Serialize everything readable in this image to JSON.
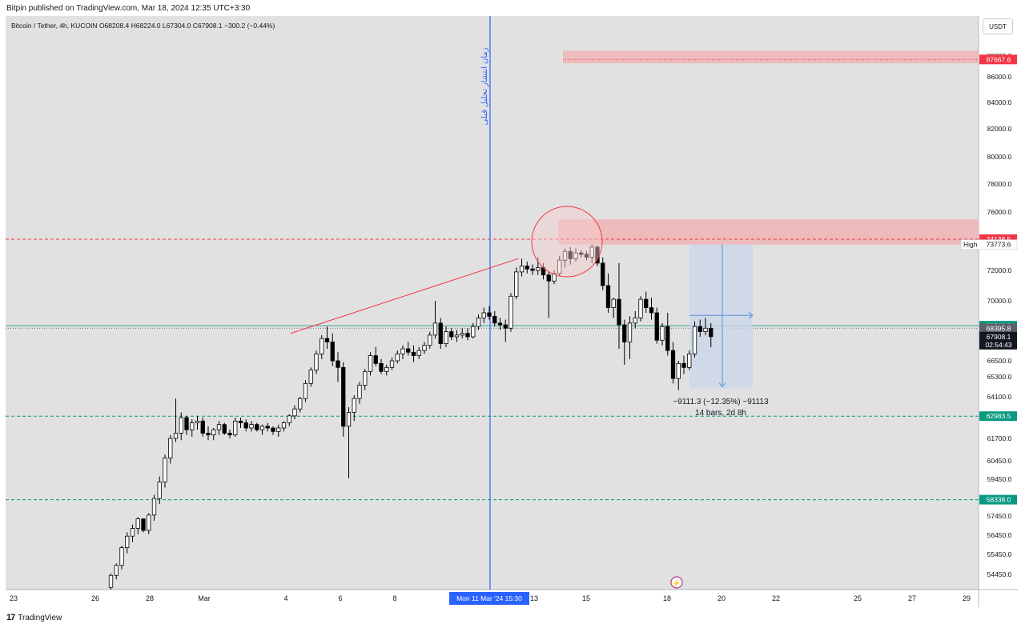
{
  "header": {
    "published_by": "Bitpin published on TradingView.com, Mar 18, 2024 12:35 UTC+3:30"
  },
  "symbol": {
    "name": "Bitcoin / Tether, 4h, KUCOIN",
    "open": "O68208.4",
    "high": "H68224.0",
    "low": "L67304.0",
    "close": "C67908.1",
    "change": "−300.2 (−0.44%)"
  },
  "currency": "USDT",
  "footer": {
    "brand": "TradingView"
  },
  "colors": {
    "background": "#e1e1e1",
    "candle_up": "#ffffff",
    "candle_down": "#000000",
    "resistance_zone": "#f0b2b2",
    "support_line": "#089981",
    "red_label": "#f23645",
    "green_label": "#089981",
    "vertical_line": "#2962ff",
    "measure_box": "#c9d6ea"
  },
  "annotations": {
    "vertical_line_text": "زمان انتشار تحلیل قبلی",
    "measure_line1": "−9111.3 (−12.35%) −91113",
    "measure_line2": "14 bars, 2d 8h",
    "time_label": "Mon 11 Mar '24   15:30",
    "high_label": "High",
    "high_value": "73773.6"
  },
  "chart_data": {
    "type": "candlestick",
    "symbol": "Bitcoin / Tether",
    "exchange": "KUCOIN",
    "interval": "4h",
    "y_axis": {
      "ticks": [
        88000,
        86000,
        84000,
        82000,
        80000,
        78000,
        76000,
        72000,
        70000,
        66500,
        65300,
        64100,
        61700,
        60450,
        59450,
        57450,
        56450,
        55450,
        54450
      ],
      "tick_labels": [
        "88000.0",
        "86000.0",
        "84000.0",
        "82000.0",
        "80000.0",
        "78000.0",
        "76000.0",
        "72000.0",
        "70000.0",
        "66500.0",
        "65300.0",
        "64100.0",
        "61700.0",
        "60450.0",
        "59450.0",
        "57450.0",
        "56450.0",
        "55450.0",
        "54450.0"
      ]
    },
    "x_axis": {
      "tick_labels": [
        "23",
        "26",
        "28",
        "Mar",
        "4",
        "6",
        "8",
        "13",
        "15",
        "18",
        "20",
        "22",
        "25",
        "27",
        "29"
      ]
    },
    "price_labels": [
      {
        "value": 87667.6,
        "text": "87667.6",
        "kind": "red"
      },
      {
        "value": 74138.5,
        "text": "74138.5",
        "kind": "red"
      },
      {
        "value": 68548.1,
        "text": "68548.1",
        "kind": "green"
      },
      {
        "value": 68395.8,
        "text": "68395.8",
        "kind": "gray"
      },
      {
        "value": 67908.1,
        "text": "67908.1",
        "countdown": "02:54:43",
        "kind": "black"
      },
      {
        "value": 62983.5,
        "text": "62983.5",
        "kind": "green"
      },
      {
        "value": 58338.0,
        "text": "58338.0",
        "kind": "green"
      }
    ],
    "horizontal_lines": [
      {
        "value": 74138.5,
        "style": "dashed",
        "color": "red"
      },
      {
        "value": 68548.1,
        "style": "solid",
        "color": "teal"
      },
      {
        "value": 68395.8,
        "style": "dotted",
        "color": "gray"
      },
      {
        "value": 62983.5,
        "style": "dashed",
        "color": "green"
      },
      {
        "value": 58338.0,
        "style": "dashed",
        "color": "green"
      }
    ],
    "zones": [
      {
        "from": 87300,
        "to": 88500,
        "color": "red"
      },
      {
        "from": 73773.6,
        "to": 75500,
        "color": "red"
      }
    ],
    "candles": [
      [
        53800,
        54500,
        53700,
        54400
      ],
      [
        54400,
        55000,
        54200,
        54900
      ],
      [
        54900,
        55900,
        54700,
        55800
      ],
      [
        55800,
        56600,
        55500,
        56400
      ],
      [
        56400,
        57000,
        56100,
        56800
      ],
      [
        56800,
        57400,
        56500,
        57300
      ],
      [
        57300,
        57200,
        56600,
        56700
      ],
      [
        56700,
        57600,
        56500,
        57500
      ],
      [
        57500,
        58600,
        57200,
        58400
      ],
      [
        58400,
        59600,
        58100,
        59300
      ],
      [
        59300,
        60800,
        59000,
        60600
      ],
      [
        60600,
        61900,
        60300,
        61700
      ],
      [
        61700,
        64000,
        61500,
        62000
      ],
      [
        62000,
        63200,
        61600,
        62900
      ],
      [
        62900,
        63000,
        61900,
        62200
      ],
      [
        62200,
        62800,
        61800,
        62600
      ],
      [
        62600,
        63000,
        62200,
        62700
      ],
      [
        62700,
        62900,
        61800,
        62000
      ],
      [
        62000,
        62400,
        61600,
        61900
      ],
      [
        61900,
        62300,
        61600,
        62200
      ],
      [
        62200,
        62700,
        61900,
        62500
      ],
      [
        62500,
        62600,
        61900,
        62000
      ],
      [
        62000,
        62200,
        61700,
        61900
      ],
      [
        61900,
        62900,
        61800,
        62700
      ],
      [
        62700,
        62900,
        62300,
        62600
      ],
      [
        62600,
        62800,
        62100,
        62300
      ],
      [
        62300,
        62700,
        62100,
        62500
      ],
      [
        62500,
        62600,
        62100,
        62200
      ],
      [
        62200,
        62500,
        61900,
        62400
      ],
      [
        62400,
        62600,
        62100,
        62300
      ],
      [
        62300,
        62400,
        61900,
        62100
      ],
      [
        62100,
        62500,
        61800,
        62300
      ],
      [
        62300,
        62700,
        62100,
        62600
      ],
      [
        62600,
        63100,
        62400,
        63000
      ],
      [
        63000,
        63600,
        62800,
        63400
      ],
      [
        63400,
        64100,
        63200,
        64000
      ],
      [
        64000,
        65100,
        63800,
        64900
      ],
      [
        64900,
        66000,
        64700,
        65800
      ],
      [
        65800,
        67100,
        65500,
        66900
      ],
      [
        66900,
        68000,
        66600,
        67800
      ],
      [
        67800,
        68500,
        67200,
        67600
      ],
      [
        67600,
        68100,
        66100,
        66500
      ],
      [
        66500,
        67000,
        65000,
        66000
      ],
      [
        66000,
        66400,
        61800,
        62400
      ],
      [
        62400,
        63500,
        59500,
        63200
      ],
      [
        63200,
        64200,
        62700,
        64000
      ],
      [
        64000,
        65000,
        63700,
        64800
      ],
      [
        64800,
        65900,
        64500,
        65700
      ],
      [
        65700,
        67000,
        65400,
        66800
      ],
      [
        66800,
        67300,
        66100,
        66300
      ],
      [
        66300,
        66600,
        65500,
        65700
      ],
      [
        65700,
        66200,
        65400,
        66000
      ],
      [
        66000,
        66700,
        65800,
        66500
      ],
      [
        66500,
        67100,
        66300,
        66900
      ],
      [
        66900,
        67400,
        66600,
        67200
      ],
      [
        67200,
        67600,
        66800,
        67000
      ],
      [
        67000,
        67400,
        66400,
        66800
      ],
      [
        66800,
        67300,
        66600,
        67100
      ],
      [
        67100,
        67600,
        66900,
        67400
      ],
      [
        67400,
        68200,
        67200,
        68000
      ],
      [
        68000,
        70000,
        67800,
        68700
      ],
      [
        68700,
        69000,
        67200,
        67500
      ],
      [
        67500,
        68500,
        67300,
        68200
      ],
      [
        68200,
        68400,
        67700,
        67900
      ],
      [
        67900,
        68300,
        67600,
        68000
      ],
      [
        68000,
        68400,
        67800,
        68100
      ],
      [
        68100,
        68400,
        67700,
        67900
      ],
      [
        67900,
        68700,
        67800,
        68500
      ],
      [
        68500,
        69200,
        68300,
        69000
      ],
      [
        69000,
        69600,
        68700,
        69300
      ],
      [
        69300,
        69700,
        68900,
        69100
      ],
      [
        69100,
        69400,
        68500,
        68700
      ],
      [
        68700,
        69000,
        68300,
        68600
      ],
      [
        68600,
        68900,
        67600,
        68400
      ],
      [
        68400,
        70500,
        68200,
        70300
      ],
      [
        70300,
        72200,
        70100,
        71900
      ],
      [
        71900,
        72800,
        71600,
        72300
      ],
      [
        72300,
        72600,
        71800,
        72100
      ],
      [
        72100,
        72400,
        71700,
        72000
      ],
      [
        72000,
        72900,
        71700,
        72200
      ],
      [
        72200,
        72500,
        71400,
        71700
      ],
      [
        71700,
        71900,
        69000,
        71300
      ],
      [
        71300,
        72000,
        71100,
        71800
      ],
      [
        71800,
        73000,
        71600,
        72700
      ],
      [
        72700,
        73500,
        72200,
        73300
      ],
      [
        73300,
        73600,
        72400,
        72800
      ],
      [
        72800,
        73500,
        72600,
        73200
      ],
      [
        73200,
        73400,
        72900,
        73100
      ],
      [
        73100,
        73300,
        72700,
        72900
      ],
      [
        72900,
        73777,
        72500,
        73600
      ],
      [
        73600,
        73700,
        72300,
        72500
      ],
      [
        72500,
        72900,
        70700,
        71000
      ],
      [
        71000,
        71800,
        69300,
        69600
      ],
      [
        69600,
        70200,
        69000,
        70100
      ],
      [
        70100,
        72500,
        67200,
        68600
      ],
      [
        68600,
        68900,
        66200,
        67600
      ],
      [
        67600,
        69100,
        66600,
        68700
      ],
      [
        68700,
        69400,
        68400,
        69000
      ],
      [
        69000,
        70300,
        68800,
        70100
      ],
      [
        70100,
        70600,
        69300,
        69600
      ],
      [
        69600,
        70200,
        68900,
        69300
      ],
      [
        69300,
        69600,
        67500,
        67700
      ],
      [
        67700,
        68700,
        67400,
        68500
      ],
      [
        68500,
        69300,
        66800,
        67100
      ],
      [
        67100,
        67600,
        64900,
        65200
      ],
      [
        65200,
        66500,
        64500,
        66300
      ],
      [
        66300,
        66800,
        65500,
        66000
      ],
      [
        66000,
        67100,
        65800,
        66900
      ],
      [
        66900,
        68800,
        66700,
        68500
      ],
      [
        68500,
        68900,
        67900,
        68200
      ],
      [
        68200,
        69000,
        68000,
        68400
      ],
      [
        68400,
        68700,
        67300,
        67908
      ]
    ]
  }
}
